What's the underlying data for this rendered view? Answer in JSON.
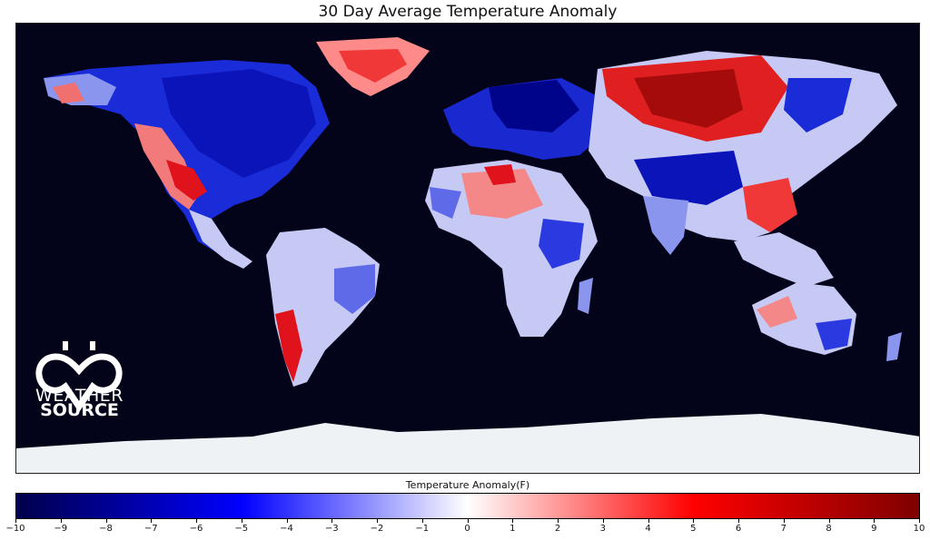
{
  "title": "30 Day Average Temperature Anomaly",
  "logo": {
    "line1": "WEATHER",
    "line2": "SOURCE"
  },
  "colorbar": {
    "label": "Temperature Anomaly(F)",
    "min": -10,
    "max": 10,
    "ticks": [
      "−10",
      "−9",
      "−8",
      "−7",
      "−6",
      "−5",
      "−4",
      "−3",
      "−2",
      "−1",
      "0",
      "1",
      "2",
      "3",
      "4",
      "5",
      "6",
      "7",
      "8",
      "9",
      "10"
    ],
    "colors": {
      "cold_extreme": "#00004c",
      "cold": "#0000ff",
      "neutral": "#ffffff",
      "warm": "#ff0000",
      "warm_extreme": "#7f0000",
      "ocean": "#03041a",
      "ice": "#eef2f4"
    }
  }
}
